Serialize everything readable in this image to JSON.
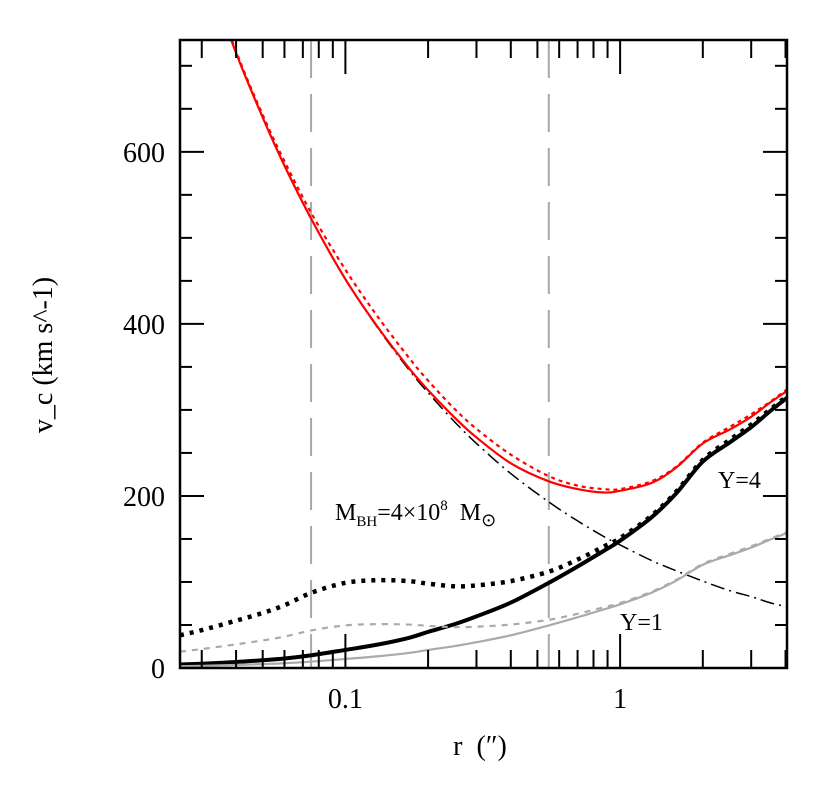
{
  "chart_data": {
    "type": "line",
    "xlabel": "r (″)",
    "ylabel": "v_c (km s^-1)",
    "ylabel_parts": {
      "v": "v",
      "sub": "c",
      "unit": "(km s",
      "exp": "-1",
      "close": ")"
    },
    "xlabel_parts": {
      "r": "r",
      "unit": "(″)"
    },
    "xscale": "log",
    "xlim": [
      0.025,
      4.05
    ],
    "ylim": [
      0,
      730
    ],
    "x_tick_labels": [
      {
        "value": 0.1,
        "label": "0.1"
      },
      {
        "value": 1,
        "label": "1"
      }
    ],
    "y_tick_labels": [
      {
        "value": 0,
        "label": "0"
      },
      {
        "value": 200,
        "label": "200"
      },
      {
        "value": 400,
        "label": "400"
      },
      {
        "value": 600,
        "label": "600"
      }
    ],
    "vertical_lines": [
      0.075,
      0.55
    ],
    "annotations": {
      "mbh": {
        "main": "M",
        "sub": "BH",
        "text": "=4×10",
        "exp": "8",
        "unit": "M",
        "unit_sub": "⊙"
      },
      "ups4": "Υ=4",
      "ups1": "Υ=1"
    },
    "x": [
      0.025,
      0.03,
      0.04,
      0.05,
      0.06,
      0.076,
      0.1,
      0.13,
      0.17,
      0.2,
      0.25,
      0.3,
      0.4,
      0.55,
      0.7,
      0.87,
      1,
      1.3,
      1.6,
      2,
      2.5,
      3,
      3.5,
      4.05
    ],
    "series": [
      {
        "id": "black-hole",
        "style": "dash-dot",
        "color": "#000000",
        "values": [
          904,
          826,
          715,
          640,
          584,
          519,
          452,
          397,
          347,
          320,
          286,
          261,
          226,
          193,
          171,
          153,
          143,
          125,
          113,
          101,
          90,
          83,
          76,
          71
        ]
      },
      {
        "id": "stars-ups4-solid",
        "style": "solid-thick",
        "color": "#000000",
        "values": [
          4,
          5,
          7,
          9,
          11,
          15,
          21,
          27,
          35,
          42,
          51,
          60,
          76,
          99,
          118,
          136,
          148,
          175,
          203,
          240,
          262,
          280,
          298,
          314
        ]
      },
      {
        "id": "stars-ups4-dotted",
        "style": "dotted-thick",
        "color": "#000000",
        "values": [
          38,
          44,
          55,
          64,
          73,
          88,
          99,
          102,
          101,
          98,
          95,
          96,
          101,
          112,
          126,
          141,
          151,
          177,
          205,
          242,
          265,
          283,
          300,
          316
        ]
      },
      {
        "id": "stars-ups1-solid",
        "style": "solid",
        "color": "#aaaaaa",
        "values": [
          2,
          2.5,
          3.5,
          4.5,
          5.5,
          7.5,
          10.5,
          13.5,
          17.5,
          21,
          25.5,
          30,
          38,
          49.5,
          59,
          68,
          74,
          87.5,
          101.5,
          120,
          131,
          140,
          149,
          157
        ]
      },
      {
        "id": "stars-ups1-dotted",
        "style": "dashed",
        "color": "#aaaaaa",
        "values": [
          19,
          22,
          27.5,
          32,
          36.5,
          44,
          49.5,
          51,
          50.5,
          49,
          47.5,
          48,
          50.5,
          56,
          63,
          70.5,
          75.5,
          88.5,
          102.5,
          121,
          132.5,
          141.5,
          150,
          158
        ]
      },
      {
        "id": "total-solid",
        "style": "solid",
        "color": "#ff0000",
        "values": [
          904,
          826,
          715,
          640,
          584,
          519,
          452,
          398,
          349,
          323,
          291,
          268,
          238,
          217,
          208,
          204,
          206,
          215,
          233,
          261,
          277,
          292,
          308,
          322
        ]
      },
      {
        "id": "total-dotted",
        "style": "dotted",
        "color": "#ff0000",
        "values": [
          905,
          827,
          717,
          643,
          589,
          526,
          463,
          410,
          361,
          334,
          301,
          278,
          248,
          223,
          212,
          208,
          208,
          217,
          234,
          262,
          280,
          295,
          309,
          324
        ]
      }
    ],
    "grid": false,
    "legend": "none"
  }
}
